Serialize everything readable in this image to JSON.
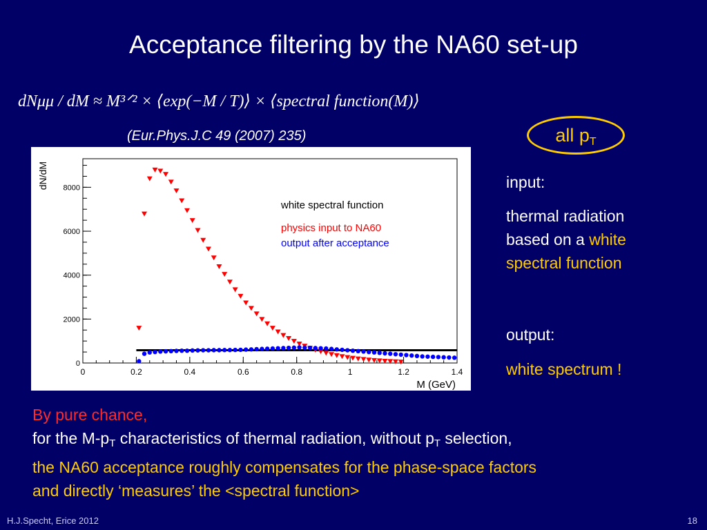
{
  "slide": {
    "title": "Acceptance filtering by the NA60 set-up",
    "formula": "dNμμ / dM ≈ M³ᐟ² × ⟨exp(−M / T)⟩ × ⟨spectral  function(M)⟩",
    "reference": "(Eur.Phys.J.C 49 (2007) 235)",
    "badge": {
      "text": "all p",
      "sub": "T"
    },
    "side_text": {
      "input_label": "input:",
      "input_line1": "thermal radiation",
      "input_line2_pre": "based on a ",
      "input_line2_highlight": "white",
      "input_line3_highlight": "spectral function",
      "output_label": "output:",
      "output_highlight": "white spectrum !"
    },
    "bottom_text": {
      "line1": "By pure chance,",
      "line2_pre": "for the M-p",
      "line2_sub": "T",
      "line2_mid": " characteristics of thermal radiation, without p",
      "line2_sub2": "T",
      "line2_post": " selection,",
      "line3": "the NA60 acceptance roughly compensates for the phase-space factors",
      "line4": "and directly ‘measures’ the <spectral function>"
    },
    "footer_left": "H.J.Specht, Erice 2012",
    "footer_right": "18",
    "colors": {
      "background": "#000066",
      "highlight": "#ffcc00",
      "emphasis": "#ff2a2a"
    }
  },
  "chart_data": {
    "type": "scatter",
    "title": "",
    "xlabel": "M (GeV)",
    "ylabel": "dN/dM",
    "xlim": [
      0,
      1.4
    ],
    "ylim": [
      0,
      9300
    ],
    "x_ticks": [
      0,
      0.2,
      0.4,
      0.6,
      0.8,
      1,
      1.2,
      1.4
    ],
    "x_tick_labels": [
      "0",
      "0.2",
      "0.4",
      "0.6",
      "0.8",
      "1",
      "1.2",
      "1.4"
    ],
    "y_ticks": [
      0,
      2000,
      4000,
      6000,
      8000
    ],
    "y_tick_labels": [
      "0",
      "2000",
      "4000",
      "6000",
      "8000"
    ],
    "legend": [
      {
        "text": "white spectral function",
        "color": "#000000"
      },
      {
        "text": "physics input to NA60",
        "color": "#ff0000"
      },
      {
        "text": "output after acceptance",
        "color": "#0000ff"
      }
    ],
    "series": [
      {
        "name": "white spectral function",
        "color": "#000000",
        "style": "line",
        "x": [
          0.2,
          1.4
        ],
        "y": [
          580,
          580
        ]
      },
      {
        "name": "physics input to NA60",
        "color": "#ff0000",
        "style": "triangle-down",
        "x": [
          0.21,
          0.23,
          0.25,
          0.27,
          0.29,
          0.31,
          0.33,
          0.35,
          0.37,
          0.39,
          0.41,
          0.43,
          0.45,
          0.47,
          0.49,
          0.51,
          0.53,
          0.55,
          0.57,
          0.59,
          0.61,
          0.63,
          0.65,
          0.67,
          0.69,
          0.71,
          0.73,
          0.75,
          0.77,
          0.79,
          0.81,
          0.83,
          0.85,
          0.87,
          0.89,
          0.91,
          0.93,
          0.95,
          0.97,
          0.99,
          1.01,
          1.03,
          1.05,
          1.07,
          1.09,
          1.11,
          1.13,
          1.15,
          1.17,
          1.19
        ],
        "y": [
          1600,
          6800,
          8400,
          8800,
          8750,
          8600,
          8250,
          7850,
          7400,
          6950,
          6500,
          6050,
          5600,
          5200,
          4800,
          4400,
          4050,
          3700,
          3350,
          3050,
          2750,
          2500,
          2250,
          2000,
          1800,
          1600,
          1430,
          1270,
          1130,
          1000,
          880,
          780,
          690,
          600,
          530,
          460,
          400,
          350,
          305,
          265,
          230,
          200,
          175,
          150,
          130,
          112,
          96,
          82,
          70,
          60
        ]
      },
      {
        "name": "output after acceptance",
        "color": "#0000ff",
        "style": "circle",
        "x": [
          0.21,
          0.23,
          0.25,
          0.27,
          0.29,
          0.31,
          0.33,
          0.35,
          0.37,
          0.39,
          0.41,
          0.43,
          0.45,
          0.47,
          0.49,
          0.51,
          0.53,
          0.55,
          0.57,
          0.59,
          0.61,
          0.63,
          0.65,
          0.67,
          0.69,
          0.71,
          0.73,
          0.75,
          0.77,
          0.79,
          0.81,
          0.83,
          0.85,
          0.87,
          0.89,
          0.91,
          0.93,
          0.95,
          0.97,
          0.99,
          1.01,
          1.03,
          1.05,
          1.07,
          1.09,
          1.11,
          1.13,
          1.15,
          1.17,
          1.19,
          1.21,
          1.23,
          1.25,
          1.27,
          1.29,
          1.31,
          1.33,
          1.35,
          1.37,
          1.39
        ],
        "y": [
          80,
          420,
          480,
          500,
          520,
          530,
          540,
          550,
          560,
          560,
          570,
          575,
          580,
          580,
          585,
          585,
          590,
          590,
          595,
          600,
          610,
          620,
          630,
          640,
          650,
          660,
          670,
          680,
          690,
          700,
          710,
          700,
          690,
          680,
          670,
          660,
          640,
          620,
          600,
          580,
          560,
          540,
          520,
          500,
          480,
          460,
          440,
          420,
          400,
          380,
          360,
          340,
          320,
          300,
          290,
          280,
          270,
          260,
          250,
          240
        ]
      }
    ]
  }
}
